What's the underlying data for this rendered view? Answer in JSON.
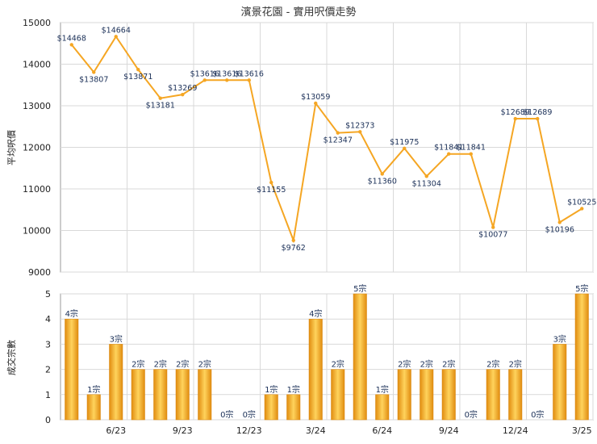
{
  "chart_data": [
    {
      "type": "line",
      "title": "濱景花園 - 實用呎價走勢",
      "ylabel": "平均呎價",
      "ylim": [
        9000,
        15000
      ],
      "yticks": [
        9000,
        10000,
        11000,
        12000,
        13000,
        14000,
        15000
      ],
      "grid": true,
      "color": "#f5a623",
      "values": [
        14468,
        13807,
        14664,
        13871,
        13181,
        13269,
        13616,
        13616,
        13616,
        11155,
        9762,
        13059,
        12347,
        12373,
        11360,
        11975,
        11304,
        11841,
        11841,
        10077,
        12689,
        12689,
        10196,
        10525
      ],
      "labels": [
        "$14468",
        "$13807",
        "$14664",
        "$13871",
        "$13181",
        "$13269",
        "$13616",
        "$13616",
        "$13616",
        "$11155",
        "$9762",
        "$13059",
        "$12347",
        "$12373",
        "$11360",
        "$11975",
        "$11304",
        "$11841",
        "$11841",
        "$10077",
        "$12689",
        "$12689",
        "$10196",
        "$10525"
      ]
    },
    {
      "type": "bar",
      "ylabel": "成交宗數",
      "ylim": [
        0,
        5
      ],
      "yticks": [
        0,
        1,
        2,
        3,
        4,
        5
      ],
      "grid": true,
      "color": "#f5a623",
      "values": [
        4,
        1,
        3,
        2,
        2,
        2,
        2,
        0,
        0,
        1,
        1,
        4,
        2,
        5,
        1,
        2,
        2,
        2,
        0,
        2,
        2,
        0,
        3,
        5
      ],
      "labels": [
        "4宗",
        "1宗",
        "3宗",
        "2宗",
        "2宗",
        "2宗",
        "2宗",
        "0宗",
        "0宗",
        "1宗",
        "1宗",
        "4宗",
        "2宗",
        "5宗",
        "1宗",
        "2宗",
        "2宗",
        "2宗",
        "0宗",
        "2宗",
        "2宗",
        "0宗",
        "3宗",
        "5宗"
      ],
      "xticks": [
        "6/23",
        "9/23",
        "12/23",
        "3/24",
        "6/24",
        "9/24",
        "12/24",
        "3/25"
      ]
    }
  ]
}
